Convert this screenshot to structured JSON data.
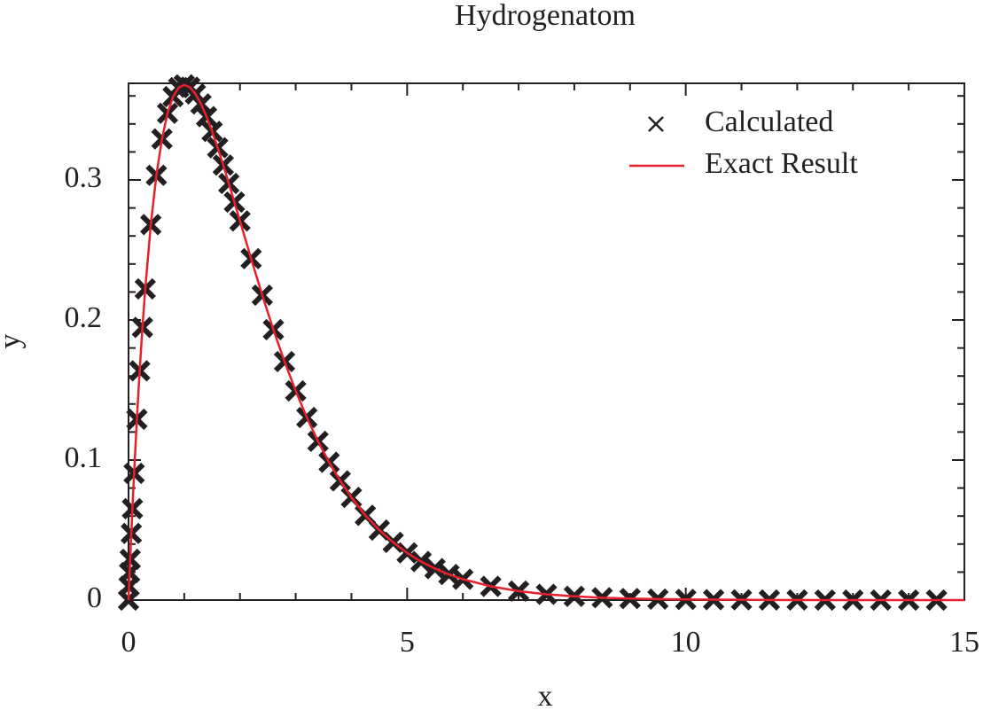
{
  "chart_data": {
    "type": "line",
    "title": "Hydrogenatom",
    "x_label": "x",
    "y_label": "y",
    "xlim": [
      0,
      15
    ],
    "ylim": [
      0,
      0.369
    ],
    "xticks": [
      0,
      5,
      10,
      15
    ],
    "yticks": [
      0,
      0.1,
      0.2,
      0.3
    ],
    "xminorticks": [
      1,
      2,
      3,
      4,
      6,
      7,
      8,
      9,
      11,
      12,
      13,
      14
    ],
    "yminorticks": [
      0.02,
      0.04,
      0.06,
      0.08,
      0.12,
      0.14,
      0.16,
      0.18,
      0.22,
      0.24,
      0.26,
      0.28,
      0.32,
      0.34,
      0.36
    ],
    "legend": "upper right",
    "series": [
      {
        "name": "Calculated",
        "color": "#231f20",
        "style": "marker",
        "x": [
          0,
          0.01,
          0.02,
          0.03,
          0.05,
          0.07,
          0.1,
          0.15,
          0.2,
          0.25,
          0.3,
          0.4,
          0.5,
          0.6,
          0.7,
          0.8,
          0.9,
          1.0,
          1.1,
          1.2,
          1.3,
          1.4,
          1.5,
          1.6,
          1.7,
          1.8,
          1.9,
          2.0,
          2.2,
          2.4,
          2.6,
          2.8,
          3.0,
          3.2,
          3.4,
          3.6,
          3.8,
          4.0,
          4.25,
          4.5,
          4.75,
          5.0,
          5.25,
          5.5,
          5.75,
          6.0,
          6.5,
          7.0,
          7.5,
          8.0,
          8.5,
          9.0,
          9.5,
          10.0,
          10.5,
          11.0,
          11.5,
          12.0,
          12.5,
          13.0,
          13.5,
          14.0,
          14.5
        ],
        "values": [
          0,
          0.0099,
          0.0196,
          0.0291,
          0.0476,
          0.0653,
          0.0905,
          0.1291,
          0.1637,
          0.1947,
          0.2222,
          0.2681,
          0.3033,
          0.3293,
          0.3476,
          0.3595,
          0.3659,
          0.3679,
          0.3662,
          0.3614,
          0.3543,
          0.3452,
          0.3347,
          0.323,
          0.3106,
          0.2975,
          0.2842,
          0.2707,
          0.2438,
          0.2177,
          0.1931,
          0.1703,
          0.1494,
          0.1304,
          0.1134,
          0.0984,
          0.0851,
          0.0733,
          0.0605,
          0.05,
          0.0412,
          0.0337,
          0.0275,
          0.0225,
          0.0183,
          0.0149,
          0.0098,
          0.0064,
          0.0041,
          0.0027,
          0.0017,
          0.0011,
          0.0007,
          0.0005,
          0.0003,
          0.0002,
          0.0001,
          0.0001,
          0,
          0,
          0,
          0,
          0
        ]
      },
      {
        "name": "Exact Result",
        "color": "#e8202a",
        "style": "line",
        "x": [
          0,
          0.01,
          0.02,
          0.03,
          0.05,
          0.07,
          0.1,
          0.15,
          0.2,
          0.25,
          0.3,
          0.4,
          0.5,
          0.6,
          0.7,
          0.8,
          0.9,
          1.0,
          1.1,
          1.2,
          1.3,
          1.4,
          1.5,
          1.6,
          1.7,
          1.8,
          1.9,
          2.0,
          2.2,
          2.4,
          2.6,
          2.8,
          3.0,
          3.2,
          3.4,
          3.6,
          3.8,
          4.0,
          4.25,
          4.5,
          4.75,
          5.0,
          5.25,
          5.5,
          5.75,
          6.0,
          6.5,
          7.0,
          7.5,
          8.0,
          8.5,
          9.0,
          9.5,
          10.0,
          10.5,
          11.0,
          11.5,
          12.0,
          12.5,
          13.0,
          13.5,
          14.0,
          14.5,
          15.0
        ],
        "values": [
          0,
          0.0099,
          0.0196,
          0.0291,
          0.0476,
          0.0653,
          0.0905,
          0.1291,
          0.1637,
          0.1947,
          0.2222,
          0.2681,
          0.3033,
          0.3293,
          0.3476,
          0.3595,
          0.3659,
          0.3679,
          0.3662,
          0.3614,
          0.3543,
          0.3452,
          0.3347,
          0.323,
          0.3106,
          0.2975,
          0.2842,
          0.2707,
          0.2438,
          0.2177,
          0.1931,
          0.1703,
          0.1494,
          0.1304,
          0.1134,
          0.0984,
          0.0851,
          0.0733,
          0.0605,
          0.05,
          0.0412,
          0.0337,
          0.0275,
          0.0225,
          0.0183,
          0.0149,
          0.0098,
          0.0064,
          0.0041,
          0.0027,
          0.0017,
          0.0011,
          0.0007,
          0.0005,
          0.0003,
          0.0002,
          0.0001,
          0.0001,
          0,
          0,
          0,
          0,
          0,
          0
        ]
      }
    ]
  }
}
